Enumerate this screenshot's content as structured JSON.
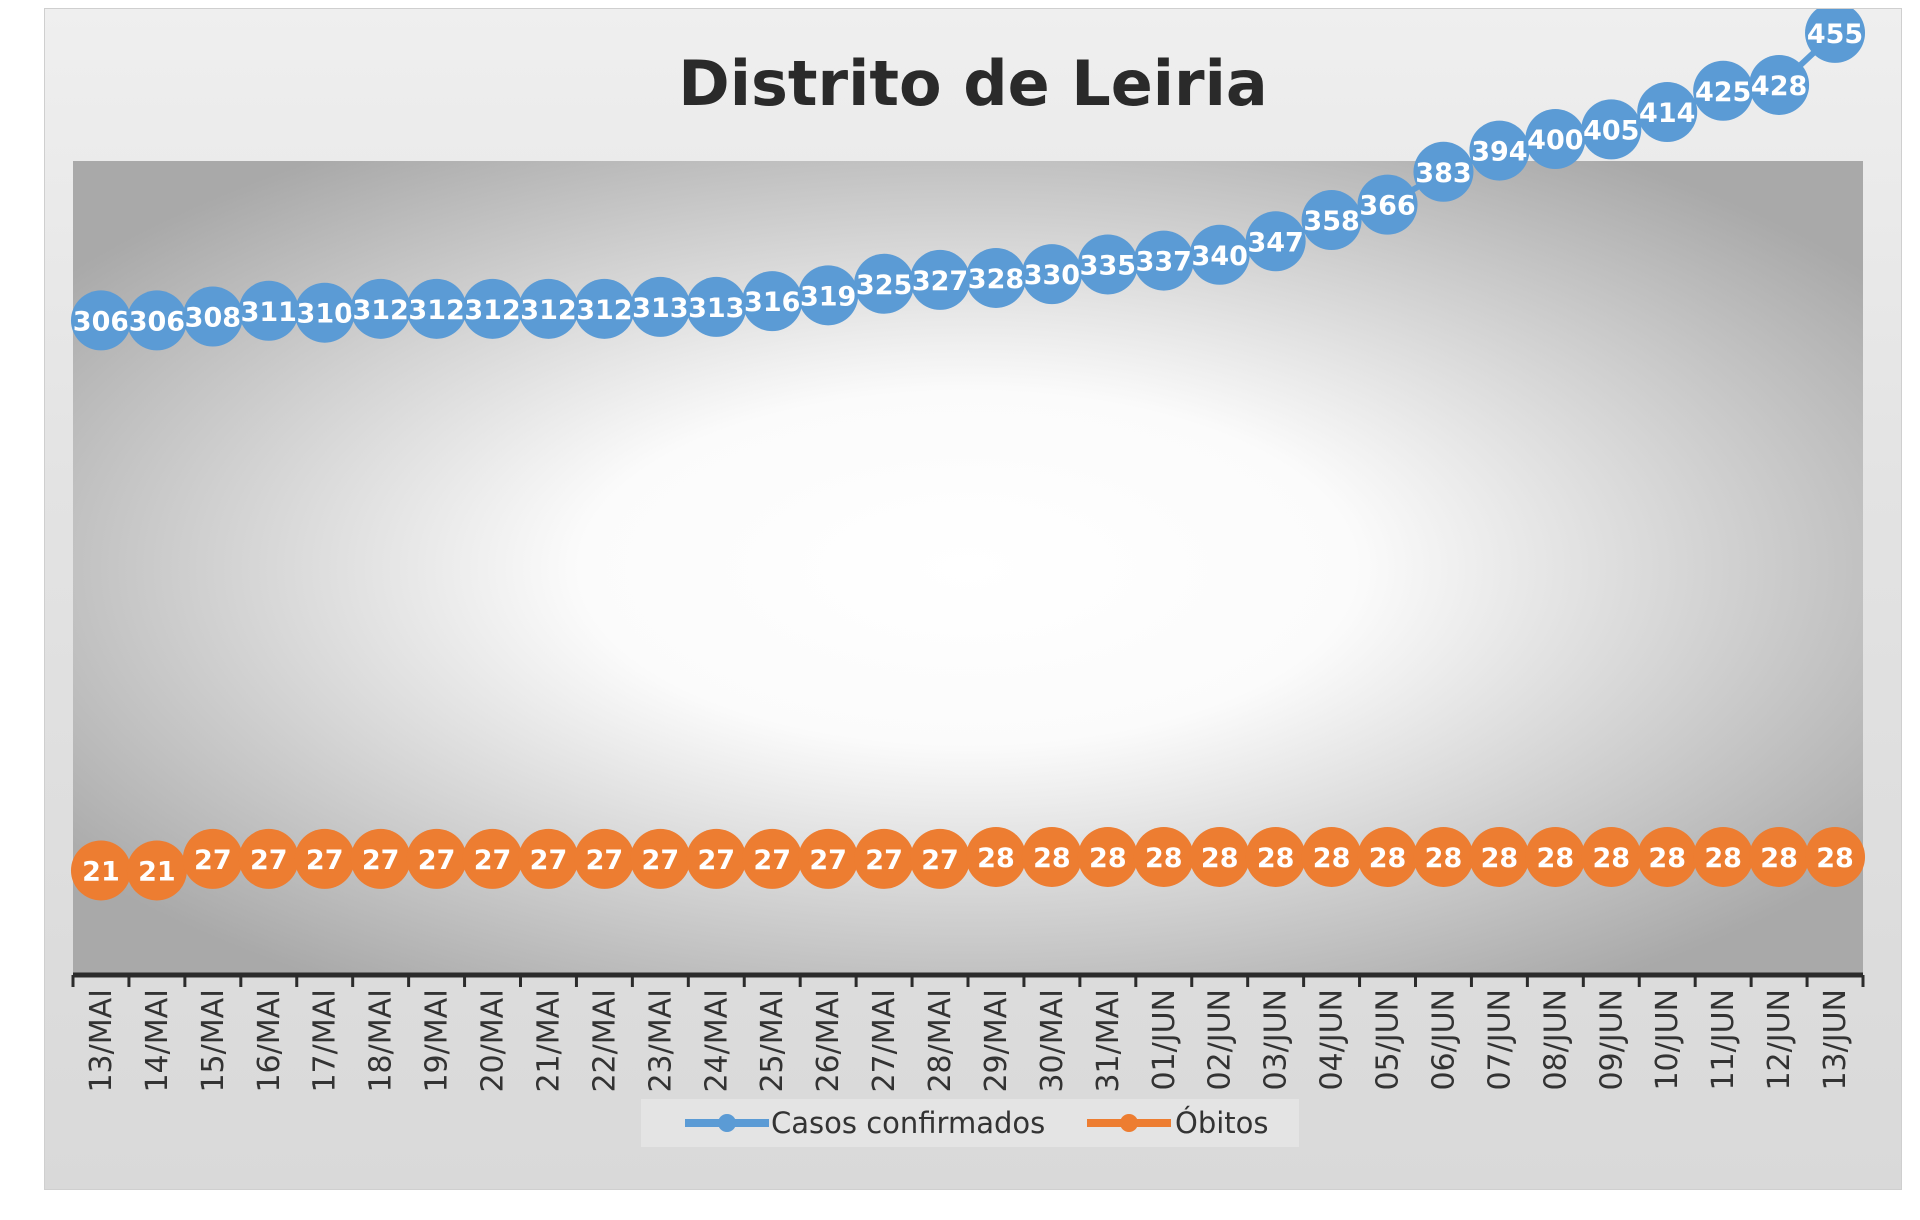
{
  "chart_data": {
    "type": "line",
    "title": "Distrito de Leiria",
    "categories": [
      "13/MAI",
      "14/MAI",
      "15/MAI",
      "16/MAI",
      "17/MAI",
      "18/MAI",
      "19/MAI",
      "20/MAI",
      "21/MAI",
      "22/MAI",
      "23/MAI",
      "24/MAI",
      "25/MAI",
      "26/MAI",
      "27/MAI",
      "28/MAI",
      "29/MAI",
      "30/MAI",
      "31/MAI",
      "01/JUN",
      "02/JUN",
      "03/JUN",
      "04/JUN",
      "05/JUN",
      "06/JUN",
      "07/JUN",
      "08/JUN",
      "09/JUN",
      "10/JUN",
      "11/JUN",
      "12/JUN",
      "13/JUN"
    ],
    "series": [
      {
        "name": "Casos confirmados",
        "color": "#5b9bd5",
        "values": [
          306,
          306,
          308,
          311,
          310,
          312,
          312,
          312,
          312,
          312,
          313,
          313,
          316,
          319,
          325,
          327,
          328,
          330,
          335,
          337,
          340,
          347,
          358,
          366,
          383,
          394,
          400,
          405,
          414,
          425,
          428,
          455
        ]
      },
      {
        "name": "Óbitos",
        "color": "#ed7d31",
        "values": [
          21,
          21,
          27,
          27,
          27,
          27,
          27,
          27,
          27,
          27,
          27,
          27,
          27,
          27,
          27,
          27,
          28,
          28,
          28,
          28,
          28,
          28,
          28,
          28,
          28,
          28,
          28,
          28,
          28,
          28,
          28,
          28
        ]
      }
    ],
    "legend_position": "bottom",
    "grid": false,
    "data_labels": true
  }
}
